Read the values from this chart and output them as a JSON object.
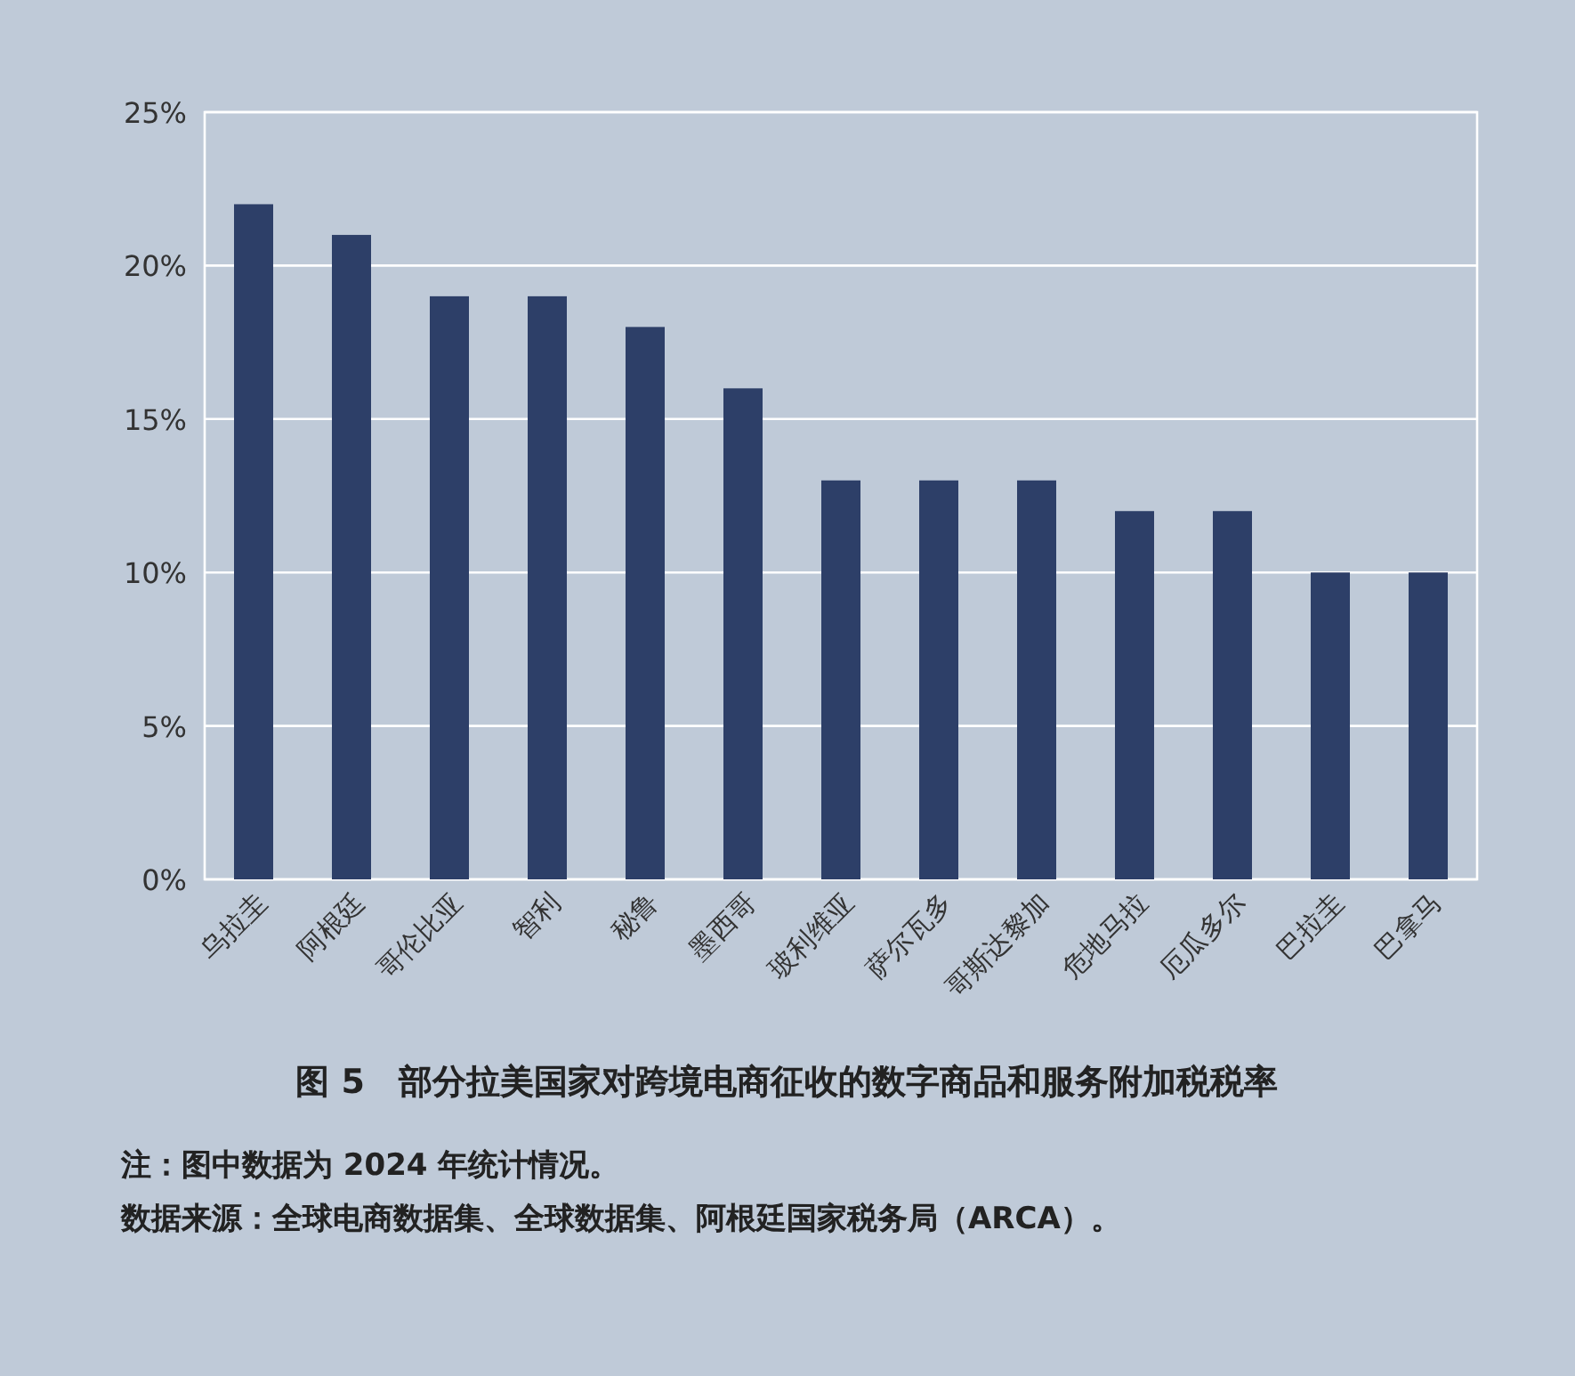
{
  "chart_data": {
    "type": "bar",
    "title": "图 5　部分拉美国家对跨境电商征收的数字商品和服务附加税税率",
    "categories": [
      "乌拉圭",
      "阿根廷",
      "哥伦比亚",
      "智利",
      "秘鲁",
      "墨西哥",
      "玻利维亚",
      "萨尔瓦多",
      "哥斯达黎加",
      "危地马拉",
      "厄瓜多尔",
      "巴拉圭",
      "巴拿马"
    ],
    "values": [
      22,
      21,
      19,
      19,
      18,
      16,
      13,
      13,
      13,
      12,
      12,
      10,
      10
    ],
    "color": "#2d3f68",
    "ylim": [
      0,
      25
    ],
    "yticks": [
      {
        "value": 0,
        "label": "0%"
      },
      {
        "value": 5,
        "label": "5%"
      },
      {
        "value": 10,
        "label": "10%"
      },
      {
        "value": 15,
        "label": "15%"
      },
      {
        "value": 20,
        "label": "20%"
      },
      {
        "value": 25,
        "label": "25%"
      }
    ],
    "grid": "y",
    "annotations": [
      "注：图中数据为 2024 年统计情况。",
      "数据来源：全球电商数据集、全球数据集、阿根廷国家税务局（ARCA）。"
    ]
  }
}
